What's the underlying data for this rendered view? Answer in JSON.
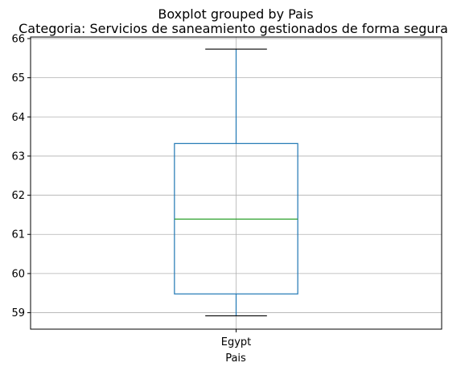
{
  "chart_data": {
    "type": "box",
    "title": "Boxplot grouped by Pais",
    "subtitle": "Categoria: Servicios de saneamiento gestionados de forma segura",
    "xlabel": "Pais",
    "ylabel": "",
    "categories": [
      "Egypt"
    ],
    "boxes": [
      {
        "category": "Egypt",
        "whisker_low": 58.92,
        "q1": 59.48,
        "median": 61.39,
        "q3": 63.32,
        "whisker_high": 65.73
      }
    ],
    "ylim": [
      58.58,
      66.04
    ],
    "yticks": [
      59,
      60,
      61,
      62,
      63,
      64,
      65,
      66
    ],
    "grid": true,
    "colors": {
      "box": "#1f77b4",
      "median": "#2ca02c",
      "whisker": "#1f77b4",
      "cap": "#000000",
      "grid": "#b0b0b0"
    }
  }
}
